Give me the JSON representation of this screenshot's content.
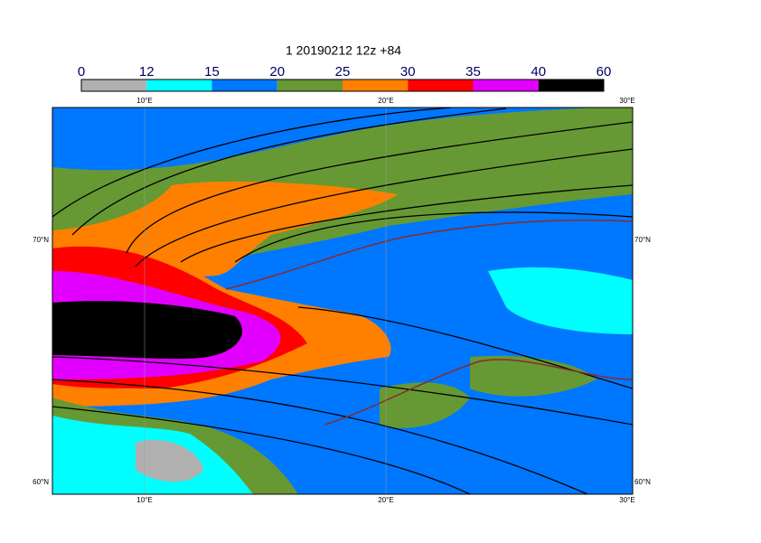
{
  "title": "1 20190212 12z +84",
  "colorbar": {
    "ticks": [
      0,
      12,
      15,
      20,
      25,
      30,
      35,
      40,
      60
    ],
    "colors": [
      "#b0b0b0",
      "#00ffff",
      "#0077ff",
      "#669933",
      "#ff8000",
      "#ff0000",
      "#e100ff",
      "#000000"
    ]
  },
  "lon_labels": [
    "10°E",
    "20°E",
    "30°E"
  ],
  "lat_labels": [
    "70°N",
    "60°N"
  ]
}
